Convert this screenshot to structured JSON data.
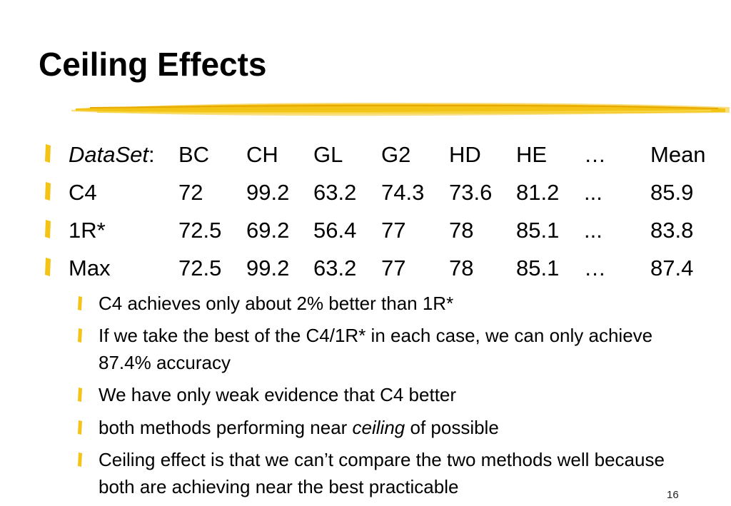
{
  "title": "Ceiling Effects",
  "colors": {
    "accent": "#f3c316",
    "accent_dark": "#e7a800"
  },
  "table": {
    "header": {
      "label": "DataSet",
      "colon": ":",
      "columns": [
        "BC",
        "CH",
        "GL",
        "G2",
        "HD",
        "HE",
        "…",
        "Mean"
      ]
    },
    "rows": [
      {
        "label": "C4",
        "values": [
          "72",
          "99.2",
          "63.2",
          "74.3",
          "73.6",
          "81.2",
          "...",
          "85.9"
        ]
      },
      {
        "label": "1R*",
        "values": [
          "72.5",
          "69.2",
          "56.4",
          "77",
          "78",
          "85.1",
          "...",
          "83.8"
        ]
      },
      {
        "label": "Max",
        "values": [
          "72.5",
          "99.2",
          "63.2",
          "77",
          "78",
          "85.1",
          "…",
          "87.4"
        ]
      }
    ]
  },
  "sub_bullets": [
    "C4 achieves only about 2% better than 1R*",
    "If we take the best of the C4/1R* in each case, we can only achieve 87.4% accuracy",
    "We have only weak evidence that C4 better",
    {
      "before": "both methods performing near ",
      "emphasis": "ceiling",
      "after": " of possible"
    },
    "Ceiling effect is that we can’t compare the two methods well because both are achieving near the best practicable"
  ],
  "page_number": "16"
}
